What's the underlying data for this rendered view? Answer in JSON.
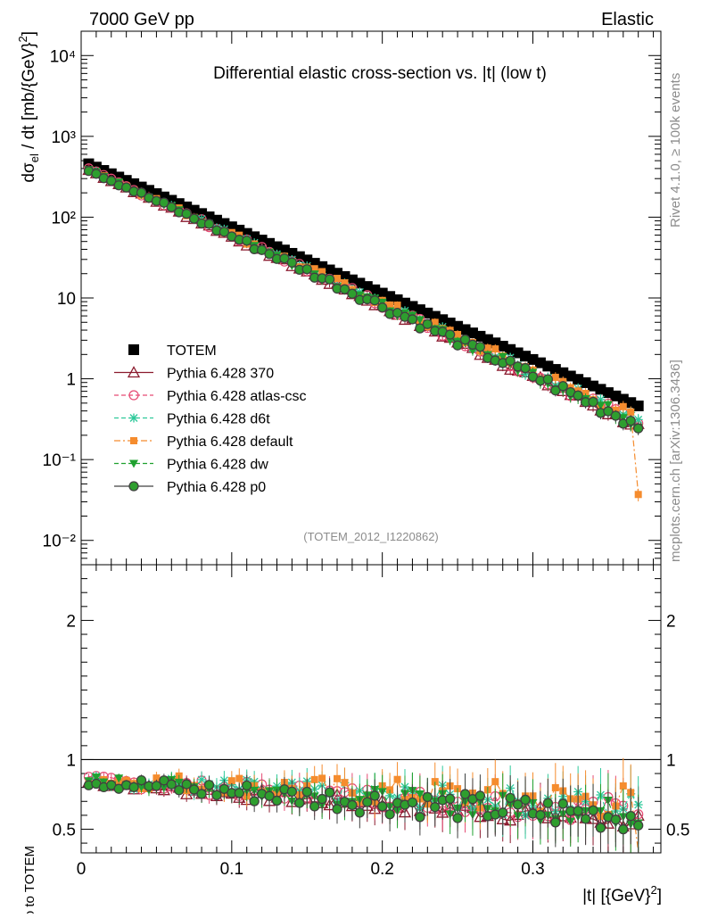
{
  "header": {
    "left": "7000 GeV pp",
    "right": "Elastic"
  },
  "side_labels": {
    "rivet": "Rivet 4.1.0, ≥ 100k events",
    "mcplots": "mcplots.cern.ch [arXiv:1306.3436]"
  },
  "chart_data": [
    {
      "type": "scatter",
      "title": "Differential elastic cross-section vs. |t| (low t)",
      "analysis_tag": "(TOTEM_2012_I1220862)",
      "ylabel": "dσel / dt [mb/{GeV}²]",
      "yscale": "log",
      "xlim": [
        0,
        0.385
      ],
      "ylim": [
        0.005,
        20000
      ],
      "ytick_labels": [
        "10⁻²",
        "10⁻¹",
        "1",
        "10",
        "10²",
        "10³",
        "10⁴"
      ],
      "legend_position": "lower-left",
      "series": [
        {
          "name": "TOTEM",
          "color": "#000000",
          "marker": "filled-square",
          "line": "none",
          "slope": 18.9,
          "y0": 503,
          "dy": 0.0
        },
        {
          "name": "Pythia 6.428 370",
          "color": "#8b1a2e",
          "marker": "open-triangle",
          "line": "solid",
          "slope": 20.0,
          "y0": 425,
          "dy": 0.03
        },
        {
          "name": "Pythia 6.428 atlas-csc",
          "color": "#e64b74",
          "marker": "open-circle",
          "line": "dashed",
          "slope": 19.7,
          "y0": 430,
          "dy": 0.04
        },
        {
          "name": "Pythia 6.428 d6t",
          "color": "#2ec99a",
          "marker": "star",
          "line": "dashed",
          "slope": 19.6,
          "y0": 430,
          "dy": 0.045
        },
        {
          "name": "Pythia 6.428 default",
          "color": "#f58c2e",
          "marker": "filled-square-small",
          "line": "dashdot",
          "slope": 19.5,
          "y0": 435,
          "dy": 0.05
        },
        {
          "name": "Pythia 6.428 dw",
          "color": "#1fa12f",
          "marker": "filled-triangle-down",
          "line": "dashed",
          "slope": 19.8,
          "y0": 430,
          "dy": 0.04
        },
        {
          "name": "Pythia 6.428 p0",
          "color": "#404040",
          "marker": "open-circle-green",
          "line": "solid",
          "slope": 19.9,
          "y0": 428,
          "dy": 0.05
        }
      ],
      "x_start": 0.005,
      "x_step": 0.005,
      "n_points": 74
    },
    {
      "type": "scatter",
      "ylabel": "Ratio to TOTEM",
      "xlabel": "|t| [{GeV}²]",
      "xlim": [
        0,
        0.385
      ],
      "ylim": [
        0.33,
        2.4
      ],
      "xtick_labels": [
        "0",
        "0.1",
        "0.2",
        "0.3"
      ],
      "ytick_labels": [
        "0.5",
        "1",
        "2"
      ],
      "reference_line": 1
    }
  ]
}
